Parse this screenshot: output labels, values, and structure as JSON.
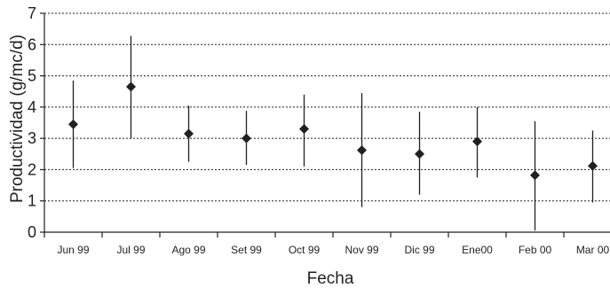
{
  "chart_data": {
    "type": "scatter",
    "subtype": "point-with-range",
    "title": "",
    "xlabel": "Fecha",
    "ylabel": "Productividad (g/mc/d)",
    "ylim": [
      0,
      7
    ],
    "yticks": [
      0,
      1,
      2,
      3,
      4,
      5,
      6,
      7
    ],
    "grid": "horizontal-dotted",
    "marker": "diamond",
    "colors": {
      "ink": "#231f20",
      "background": "#ffffff"
    },
    "categories": [
      "Jun 99",
      "Jul 99",
      "Ago 99",
      "Set 99",
      "Oct 99",
      "Nov 99",
      "Dic 99",
      "Ene00",
      "Feb 00",
      "Mar 00"
    ],
    "series": [
      {
        "values": [
          3.45,
          4.65,
          3.15,
          3.0,
          3.3,
          2.62,
          2.5,
          2.9,
          1.82,
          2.12
        ],
        "upper": [
          4.85,
          6.28,
          4.05,
          3.88,
          4.4,
          4.45,
          3.85,
          4.0,
          3.55,
          3.25
        ],
        "lower": [
          2.05,
          3.0,
          2.25,
          2.15,
          2.1,
          0.8,
          1.2,
          1.75,
          0.05,
          0.95
        ]
      }
    ]
  }
}
